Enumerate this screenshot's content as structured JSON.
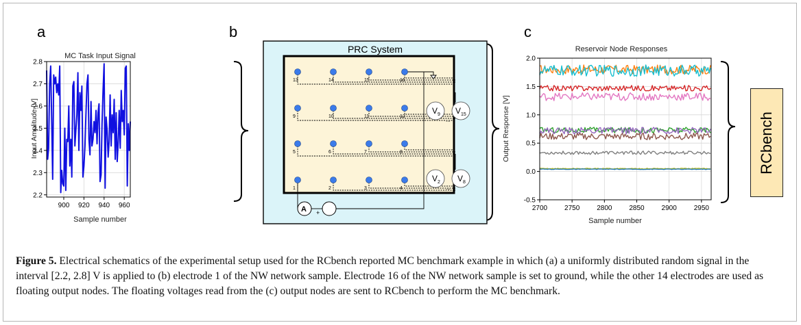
{
  "figure": {
    "panel_labels": [
      "a",
      "b",
      "c"
    ]
  },
  "panel_a": {
    "title": "MC Task Input Signal",
    "xlabel": "Sample number",
    "ylabel": "Input Amplitude [V]"
  },
  "panel_b": {
    "title": "PRC System",
    "electrodes": [
      "1",
      "2",
      "3",
      "4",
      "5",
      "6",
      "7",
      "8",
      "9",
      "10",
      "11",
      "12",
      "13",
      "14",
      "15",
      "16"
    ],
    "voltmeters": [
      "V9",
      "V15",
      "V2",
      "V8"
    ],
    "ammeter_label": "A",
    "plus_sign": "+",
    "ellipsis": "..."
  },
  "panel_c": {
    "title": "Reservoir Node Responses",
    "xlabel": "Sample number",
    "ylabel": "Output Response [V]"
  },
  "rcbench_label": "RCbench",
  "caption": {
    "label": "Figure 5.",
    "text": "Electrical schematics of the experimental setup used for the RCbench reported MC benchmark example in which (a) a uniformly distributed random signal in the interval [2.2, 2.8] V is applied to (b) electrode 1 of the NW network sample. Electrode 16 of the NW network sample is set to ground, while the other 14 electrodes are used as floating output nodes. The floating voltages read from the (c) output nodes are sent to RCbench to perform the MC benchmark."
  },
  "chart_data": [
    {
      "type": "line",
      "title": "MC Task Input Signal",
      "xlabel": "Sample number",
      "ylabel": "Input Amplitude [V]",
      "xlim": [
        883,
        966
      ],
      "ylim": [
        2.19,
        2.8
      ],
      "xticks": [
        900,
        920,
        940,
        960
      ],
      "yticks": [
        2.2,
        2.3,
        2.4,
        2.5,
        2.6,
        2.7,
        2.8
      ],
      "grid": true,
      "series": [
        {
          "color": "#1010e0",
          "x": [
            883,
            884,
            885,
            886,
            887,
            888,
            889,
            890,
            891,
            892,
            893,
            894,
            895,
            896,
            897,
            898,
            899,
            900,
            901,
            902,
            903,
            904,
            905,
            906,
            907,
            908,
            909,
            910,
            911,
            912,
            913,
            914,
            915,
            916,
            917,
            918,
            919,
            920,
            921,
            922,
            923,
            924,
            925,
            926,
            927,
            928,
            929,
            930,
            931,
            932,
            933,
            934,
            935,
            936,
            937,
            938,
            939,
            940,
            941,
            942,
            943,
            944,
            945,
            946,
            947,
            948,
            949,
            950,
            951,
            952,
            953,
            954,
            955,
            956,
            957,
            958,
            959,
            960,
            961,
            962,
            963,
            964,
            965,
            966
          ],
          "y": [
            2.76,
            2.36,
            2.41,
            2.7,
            2.78,
            2.55,
            2.27,
            2.74,
            2.7,
            2.73,
            2.66,
            2.7,
            2.65,
            2.78,
            2.21,
            2.31,
            2.25,
            2.24,
            2.5,
            2.22,
            2.45,
            2.44,
            2.6,
            2.33,
            2.45,
            2.28,
            2.69,
            2.71,
            2.42,
            2.49,
            2.56,
            2.75,
            2.4,
            2.66,
            2.58,
            2.69,
            2.28,
            2.33,
            2.42,
            2.56,
            2.7,
            2.74,
            2.45,
            2.38,
            2.62,
            2.42,
            2.45,
            2.53,
            2.48,
            2.58,
            2.43,
            2.57,
            2.61,
            2.26,
            2.29,
            2.52,
            2.67,
            2.79,
            2.23,
            2.55,
            2.49,
            2.37,
            2.44,
            2.65,
            2.42,
            2.56,
            2.48,
            2.63,
            2.36,
            2.57,
            2.35,
            2.44,
            2.58,
            2.41,
            2.67,
            2.53,
            2.58,
            2.47,
            2.77,
            2.78,
            2.24,
            2.52,
            2.4,
            2.53
          ]
        }
      ]
    },
    {
      "type": "line",
      "title": "Reservoir Node Responses",
      "xlabel": "Sample number",
      "ylabel": "Output Response [V]",
      "xlim": [
        2700,
        2965
      ],
      "ylim": [
        -0.5,
        2.0
      ],
      "xticks": [
        2700,
        2750,
        2800,
        2850,
        2900,
        2950
      ],
      "yticks": [
        -0.5,
        0.0,
        0.5,
        1.0,
        1.5,
        2.0
      ],
      "grid": true,
      "series": [
        {
          "color": "#ff7f0e",
          "mean": 1.8,
          "amp": 0.08
        },
        {
          "color": "#17becf",
          "mean": 1.78,
          "amp": 0.1
        },
        {
          "color": "#d62728",
          "mean": 1.47,
          "amp": 0.05
        },
        {
          "color": "#e377c2",
          "mean": 1.32,
          "amp": 0.07
        },
        {
          "color": "#2ca02c",
          "mean": 0.73,
          "amp": 0.05
        },
        {
          "color": "#9467bd",
          "mean": 0.72,
          "amp": 0.06
        },
        {
          "color": "#8c564b",
          "mean": 0.62,
          "amp": 0.06
        },
        {
          "color": "#7f7f7f",
          "mean": 0.33,
          "amp": 0.03
        },
        {
          "color": "#bcbd22",
          "mean": 0.05,
          "amp": 0.008
        },
        {
          "color": "#1f77b4",
          "mean": 0.04,
          "amp": 0.005
        }
      ]
    }
  ]
}
